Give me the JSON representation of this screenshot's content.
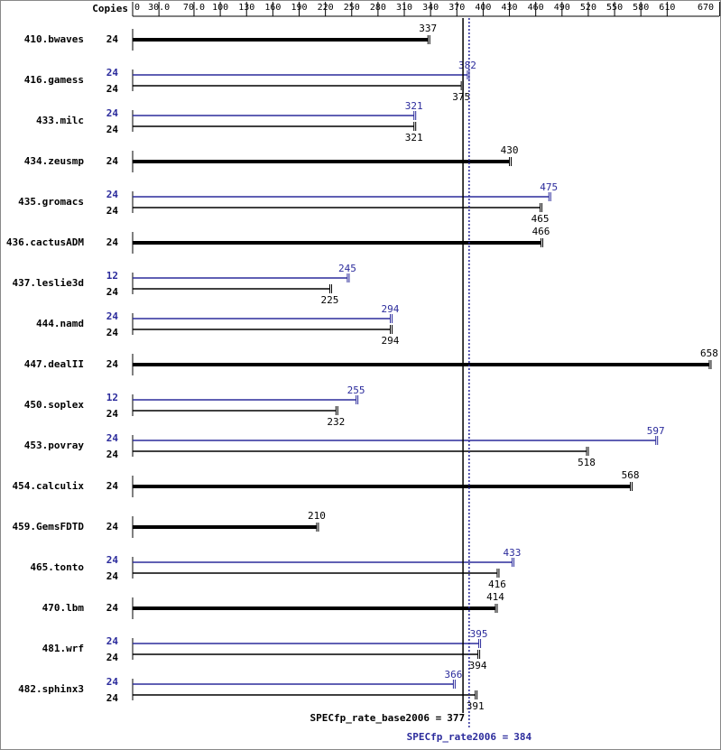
{
  "chart_data": {
    "type": "bar",
    "copies_header": "Copies",
    "xlim": [
      0,
      670
    ],
    "xticks": [
      0,
      {
        "value": 30,
        "label": "30.0"
      },
      {
        "value": 70,
        "label": "70.0"
      },
      100,
      130,
      160,
      190,
      220,
      250,
      280,
      310,
      340,
      370,
      400,
      430,
      460,
      490,
      520,
      550,
      580,
      610,
      670
    ],
    "base_color": "#000000",
    "peak_color": "#2b2b9c",
    "benchmarks": [
      {
        "name": "410.bwaves",
        "copies": 24,
        "value": 337
      },
      {
        "name": "416.gamess",
        "peak_copies": 24,
        "peak": 382,
        "base_copies": 24,
        "base": 375
      },
      {
        "name": "433.milc",
        "peak_copies": 24,
        "peak": 321,
        "base_copies": 24,
        "base": 321
      },
      {
        "name": "434.zeusmp",
        "copies": 24,
        "value": 430
      },
      {
        "name": "435.gromacs",
        "peak_copies": 24,
        "peak": 475,
        "base_copies": 24,
        "base": 465
      },
      {
        "name": "436.cactusADM",
        "copies": 24,
        "value": 466
      },
      {
        "name": "437.leslie3d",
        "peak_copies": 12,
        "peak": 245,
        "base_copies": 24,
        "base": 225
      },
      {
        "name": "444.namd",
        "peak_copies": 24,
        "peak": 294,
        "base_copies": 24,
        "base": 294
      },
      {
        "name": "447.dealII",
        "copies": 24,
        "value": 658
      },
      {
        "name": "450.soplex",
        "peak_copies": 12,
        "peak": 255,
        "base_copies": 24,
        "base": 232
      },
      {
        "name": "453.povray",
        "peak_copies": 24,
        "peak": 597,
        "base_copies": 24,
        "base": 518
      },
      {
        "name": "454.calculix",
        "copies": 24,
        "value": 568
      },
      {
        "name": "459.GemsFDTD",
        "copies": 24,
        "value": 210
      },
      {
        "name": "465.tonto",
        "peak_copies": 24,
        "peak": 433,
        "base_copies": 24,
        "base": 416
      },
      {
        "name": "470.lbm",
        "copies": 24,
        "value": 414
      },
      {
        "name": "481.wrf",
        "peak_copies": 24,
        "peak": 395,
        "base_copies": 24,
        "base": 394
      },
      {
        "name": "482.sphinx3",
        "peak_copies": 24,
        "peak": 366,
        "base_copies": 24,
        "base": 391
      }
    ],
    "base_mean_label": "SPECfp_rate_base2006 =",
    "base_mean": 377,
    "peak_mean_label": "SPECfp_rate2006 =",
    "peak_mean": 384
  }
}
